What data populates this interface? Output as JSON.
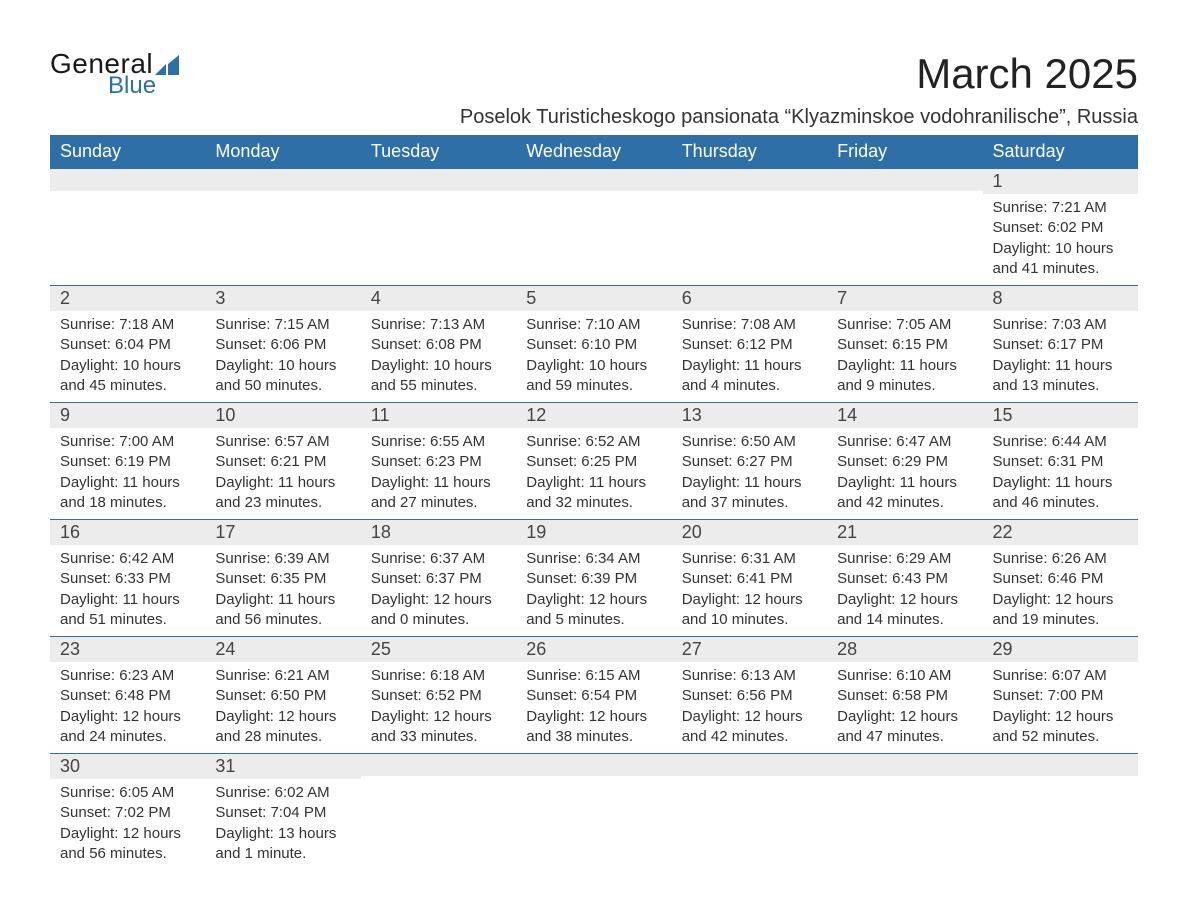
{
  "brand": {
    "word1": "General",
    "word2": "Blue",
    "accent_color": "#2f6fa8"
  },
  "title": "March 2025",
  "location": "Poselok Turisticheskogo pansionata “Klyazminskoe vodohranilische”, Russia",
  "dow": [
    "Sunday",
    "Monday",
    "Tuesday",
    "Wednesday",
    "Thursday",
    "Friday",
    "Saturday"
  ],
  "colors": {
    "header_bg": "#2f6fa8",
    "header_text": "#ffffff",
    "daynum_bg": "#ececec",
    "border": "#2f6fa8",
    "text": "#333333"
  },
  "weeks": [
    [
      {
        "n": "",
        "lines": [
          "",
          "",
          "",
          ""
        ]
      },
      {
        "n": "",
        "lines": [
          "",
          "",
          "",
          ""
        ]
      },
      {
        "n": "",
        "lines": [
          "",
          "",
          "",
          ""
        ]
      },
      {
        "n": "",
        "lines": [
          "",
          "",
          "",
          ""
        ]
      },
      {
        "n": "",
        "lines": [
          "",
          "",
          "",
          ""
        ]
      },
      {
        "n": "",
        "lines": [
          "",
          "",
          "",
          ""
        ]
      },
      {
        "n": "1",
        "lines": [
          "Sunrise: 7:21 AM",
          "Sunset: 6:02 PM",
          "Daylight: 10 hours",
          "and 41 minutes."
        ]
      }
    ],
    [
      {
        "n": "2",
        "lines": [
          "Sunrise: 7:18 AM",
          "Sunset: 6:04 PM",
          "Daylight: 10 hours",
          "and 45 minutes."
        ]
      },
      {
        "n": "3",
        "lines": [
          "Sunrise: 7:15 AM",
          "Sunset: 6:06 PM",
          "Daylight: 10 hours",
          "and 50 minutes."
        ]
      },
      {
        "n": "4",
        "lines": [
          "Sunrise: 7:13 AM",
          "Sunset: 6:08 PM",
          "Daylight: 10 hours",
          "and 55 minutes."
        ]
      },
      {
        "n": "5",
        "lines": [
          "Sunrise: 7:10 AM",
          "Sunset: 6:10 PM",
          "Daylight: 10 hours",
          "and 59 minutes."
        ]
      },
      {
        "n": "6",
        "lines": [
          "Sunrise: 7:08 AM",
          "Sunset: 6:12 PM",
          "Daylight: 11 hours",
          "and 4 minutes."
        ]
      },
      {
        "n": "7",
        "lines": [
          "Sunrise: 7:05 AM",
          "Sunset: 6:15 PM",
          "Daylight: 11 hours",
          "and 9 minutes."
        ]
      },
      {
        "n": "8",
        "lines": [
          "Sunrise: 7:03 AM",
          "Sunset: 6:17 PM",
          "Daylight: 11 hours",
          "and 13 minutes."
        ]
      }
    ],
    [
      {
        "n": "9",
        "lines": [
          "Sunrise: 7:00 AM",
          "Sunset: 6:19 PM",
          "Daylight: 11 hours",
          "and 18 minutes."
        ]
      },
      {
        "n": "10",
        "lines": [
          "Sunrise: 6:57 AM",
          "Sunset: 6:21 PM",
          "Daylight: 11 hours",
          "and 23 minutes."
        ]
      },
      {
        "n": "11",
        "lines": [
          "Sunrise: 6:55 AM",
          "Sunset: 6:23 PM",
          "Daylight: 11 hours",
          "and 27 minutes."
        ]
      },
      {
        "n": "12",
        "lines": [
          "Sunrise: 6:52 AM",
          "Sunset: 6:25 PM",
          "Daylight: 11 hours",
          "and 32 minutes."
        ]
      },
      {
        "n": "13",
        "lines": [
          "Sunrise: 6:50 AM",
          "Sunset: 6:27 PM",
          "Daylight: 11 hours",
          "and 37 minutes."
        ]
      },
      {
        "n": "14",
        "lines": [
          "Sunrise: 6:47 AM",
          "Sunset: 6:29 PM",
          "Daylight: 11 hours",
          "and 42 minutes."
        ]
      },
      {
        "n": "15",
        "lines": [
          "Sunrise: 6:44 AM",
          "Sunset: 6:31 PM",
          "Daylight: 11 hours",
          "and 46 minutes."
        ]
      }
    ],
    [
      {
        "n": "16",
        "lines": [
          "Sunrise: 6:42 AM",
          "Sunset: 6:33 PM",
          "Daylight: 11 hours",
          "and 51 minutes."
        ]
      },
      {
        "n": "17",
        "lines": [
          "Sunrise: 6:39 AM",
          "Sunset: 6:35 PM",
          "Daylight: 11 hours",
          "and 56 minutes."
        ]
      },
      {
        "n": "18",
        "lines": [
          "Sunrise: 6:37 AM",
          "Sunset: 6:37 PM",
          "Daylight: 12 hours",
          "and 0 minutes."
        ]
      },
      {
        "n": "19",
        "lines": [
          "Sunrise: 6:34 AM",
          "Sunset: 6:39 PM",
          "Daylight: 12 hours",
          "and 5 minutes."
        ]
      },
      {
        "n": "20",
        "lines": [
          "Sunrise: 6:31 AM",
          "Sunset: 6:41 PM",
          "Daylight: 12 hours",
          "and 10 minutes."
        ]
      },
      {
        "n": "21",
        "lines": [
          "Sunrise: 6:29 AM",
          "Sunset: 6:43 PM",
          "Daylight: 12 hours",
          "and 14 minutes."
        ]
      },
      {
        "n": "22",
        "lines": [
          "Sunrise: 6:26 AM",
          "Sunset: 6:46 PM",
          "Daylight: 12 hours",
          "and 19 minutes."
        ]
      }
    ],
    [
      {
        "n": "23",
        "lines": [
          "Sunrise: 6:23 AM",
          "Sunset: 6:48 PM",
          "Daylight: 12 hours",
          "and 24 minutes."
        ]
      },
      {
        "n": "24",
        "lines": [
          "Sunrise: 6:21 AM",
          "Sunset: 6:50 PM",
          "Daylight: 12 hours",
          "and 28 minutes."
        ]
      },
      {
        "n": "25",
        "lines": [
          "Sunrise: 6:18 AM",
          "Sunset: 6:52 PM",
          "Daylight: 12 hours",
          "and 33 minutes."
        ]
      },
      {
        "n": "26",
        "lines": [
          "Sunrise: 6:15 AM",
          "Sunset: 6:54 PM",
          "Daylight: 12 hours",
          "and 38 minutes."
        ]
      },
      {
        "n": "27",
        "lines": [
          "Sunrise: 6:13 AM",
          "Sunset: 6:56 PM",
          "Daylight: 12 hours",
          "and 42 minutes."
        ]
      },
      {
        "n": "28",
        "lines": [
          "Sunrise: 6:10 AM",
          "Sunset: 6:58 PM",
          "Daylight: 12 hours",
          "and 47 minutes."
        ]
      },
      {
        "n": "29",
        "lines": [
          "Sunrise: 6:07 AM",
          "Sunset: 7:00 PM",
          "Daylight: 12 hours",
          "and 52 minutes."
        ]
      }
    ],
    [
      {
        "n": "30",
        "lines": [
          "Sunrise: 6:05 AM",
          "Sunset: 7:02 PM",
          "Daylight: 12 hours",
          "and 56 minutes."
        ]
      },
      {
        "n": "31",
        "lines": [
          "Sunrise: 6:02 AM",
          "Sunset: 7:04 PM",
          "Daylight: 13 hours",
          "and 1 minute."
        ]
      },
      {
        "n": "",
        "lines": [
          "",
          "",
          "",
          ""
        ]
      },
      {
        "n": "",
        "lines": [
          "",
          "",
          "",
          ""
        ]
      },
      {
        "n": "",
        "lines": [
          "",
          "",
          "",
          ""
        ]
      },
      {
        "n": "",
        "lines": [
          "",
          "",
          "",
          ""
        ]
      },
      {
        "n": "",
        "lines": [
          "",
          "",
          "",
          ""
        ]
      }
    ]
  ]
}
